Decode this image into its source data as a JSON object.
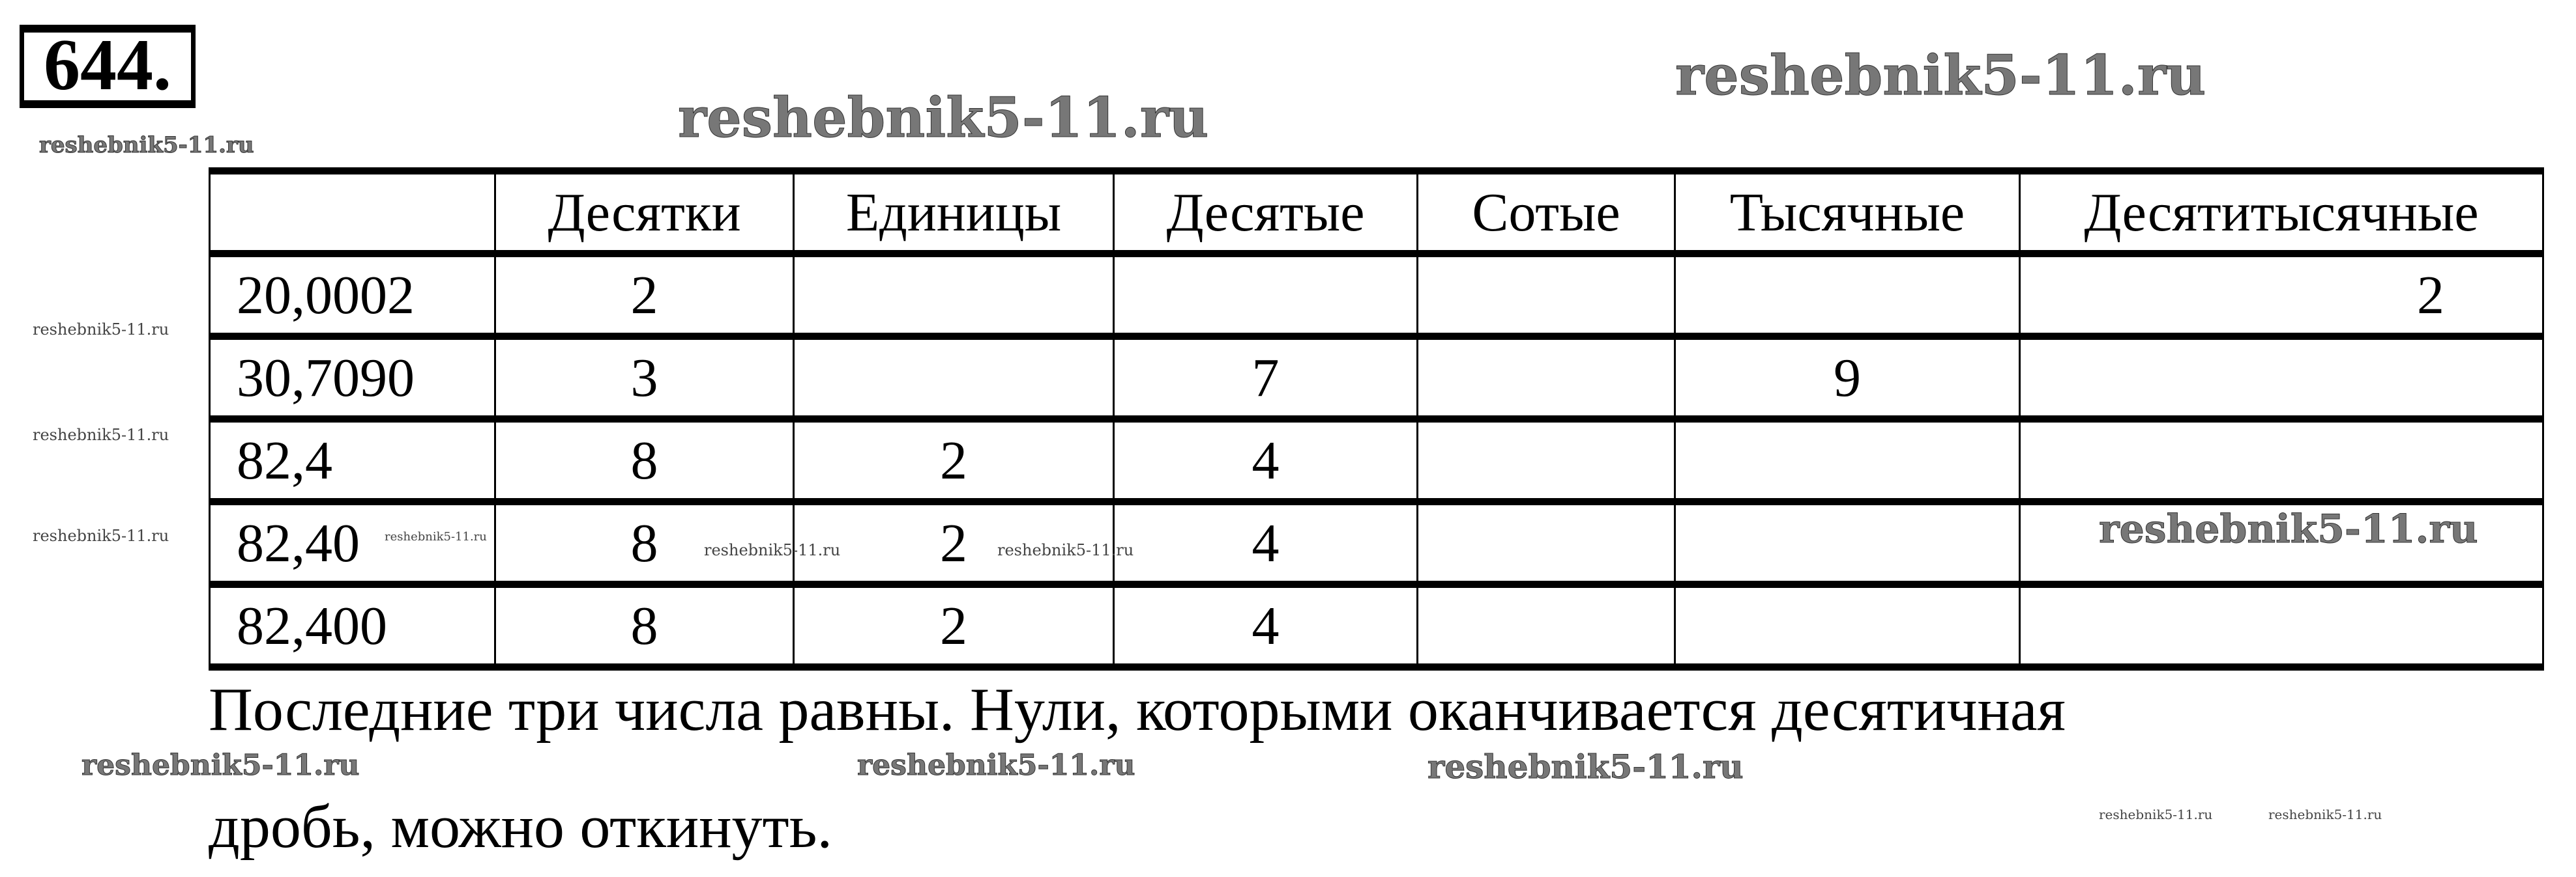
{
  "problem_number": "644.",
  "watermark": "reshebnik5-11.ru",
  "table": {
    "headers": [
      "",
      "Десятки",
      "Единицы",
      "Десятые",
      "Сотые",
      "Тысячные",
      "Десятитысячные"
    ],
    "rows": [
      [
        "20,0002",
        "2",
        "",
        "",
        "",
        "",
        "2"
      ],
      [
        "30,7090",
        "3",
        "",
        "7",
        "",
        "9",
        ""
      ],
      [
        "82,4",
        "8",
        "2",
        "4",
        "",
        "",
        ""
      ],
      [
        "82,40",
        "8",
        "2",
        "4",
        "",
        "",
        ""
      ],
      [
        "82,400",
        "8",
        "2",
        "4",
        "",
        "",
        ""
      ]
    ]
  },
  "answer": {
    "line1": "Последние три числа равны. Нули, которыми оканчивается десятичная",
    "line2": "дробь, можно откинуть."
  }
}
